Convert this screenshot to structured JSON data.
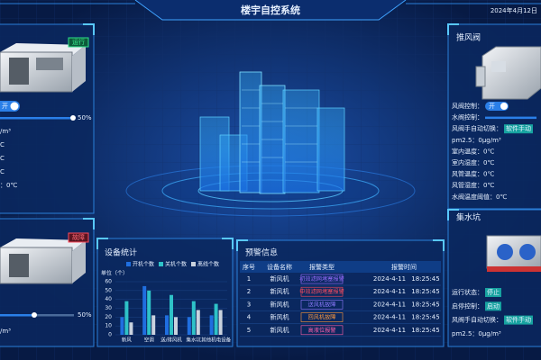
{
  "header": {
    "title": "楼宇自控系统",
    "date": "2024年4月12日"
  },
  "left_top": {
    "status": "运行",
    "switch": "开",
    "slider_label": "50%",
    "lines": [
      "/m³",
      "C",
      "C",
      "C",
      "：0℃"
    ]
  },
  "left_bottom": {
    "status": "故障",
    "slider_label": "50%",
    "lines": [
      "/m³"
    ]
  },
  "stats_chart": {
    "type": "bar",
    "title": "设备统计",
    "unit_label": "单位（个）",
    "categories": [
      "新风",
      "空调",
      "送/排风机",
      "集水坑",
      "其他机电设备"
    ],
    "series": [
      {
        "name": "开机个数",
        "color": "#1f6fe0",
        "values": [
          20,
          55,
          22,
          20,
          22
        ]
      },
      {
        "name": "关机个数",
        "color": "#2ec2c8",
        "values": [
          38,
          50,
          45,
          38,
          35
        ]
      },
      {
        "name": "离线个数",
        "color": "#c9d2de",
        "values": [
          14,
          22,
          20,
          28,
          28
        ]
      }
    ],
    "ylim": [
      0,
      60
    ],
    "yticks": [
      0,
      10,
      20,
      30,
      40,
      50,
      60
    ]
  },
  "alarms": {
    "title": "预警信息",
    "columns": [
      "序号",
      "设备名称",
      "报警类型",
      "报警时间"
    ],
    "rows": [
      [
        1,
        "新风机",
        "初效滤网堵塞报警",
        "2024-4-11",
        "18:25:45"
      ],
      [
        2,
        "新风机",
        "中效滤网堵塞报警",
        "2024-4-11",
        "18:25:45"
      ],
      [
        3,
        "新风机",
        "送风机故障",
        "2024-4-11",
        "18:25:45"
      ],
      [
        4,
        "新风机",
        "回风机故障",
        "2024-4-11",
        "18:25:45"
      ],
      [
        5,
        "新风机",
        "高液位报警",
        "2024-4-11",
        "18:25:45"
      ]
    ]
  },
  "air_valve": {
    "title": "推风阀",
    "items": [
      {
        "label": "风阀控制：",
        "toggle": "开"
      },
      {
        "label": "水阀控制："
      },
      {
        "label": "风阀手自动切换：",
        "button": "软件手动"
      },
      {
        "label": "pm2.5：0μg/m³"
      },
      {
        "label": "室内温度：0℃"
      },
      {
        "label": "室内湿度：0℃"
      },
      {
        "label": "风管温度：0℃"
      },
      {
        "label": "风管湿度：0℃"
      },
      {
        "label": "水阀温度阈值：0℃"
      }
    ]
  },
  "sump": {
    "title": "集水坑",
    "items": [
      {
        "label": "运行状态：",
        "button": "停止"
      },
      {
        "label": "启停控制：",
        "button": "启动"
      },
      {
        "label": "风阀手自动切换：",
        "button": "软件手动"
      },
      {
        "label": "pm2.5：0μg/m³"
      }
    ]
  }
}
